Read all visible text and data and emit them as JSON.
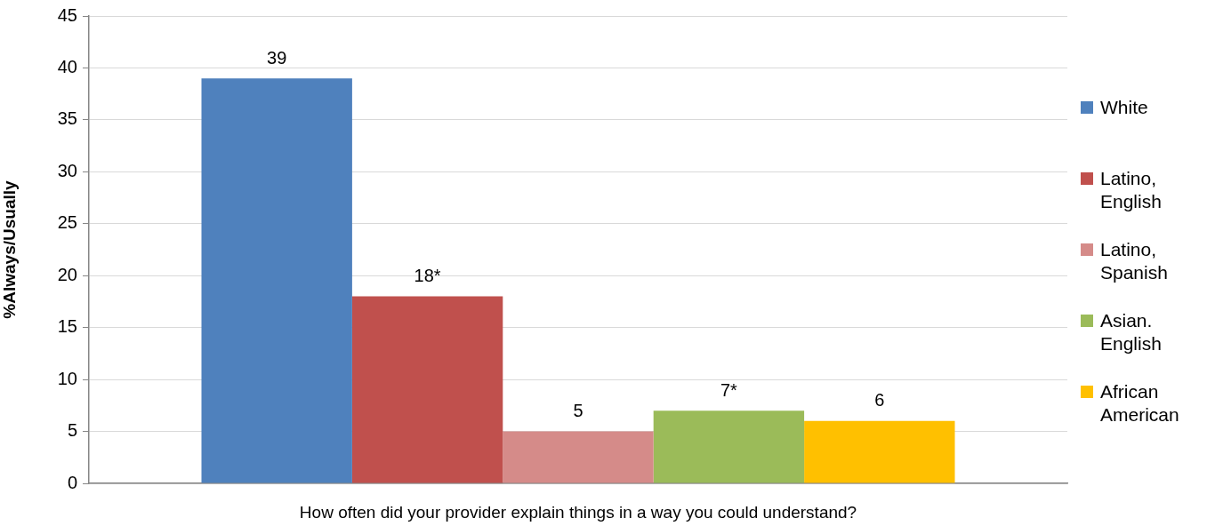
{
  "chart_data": {
    "type": "bar",
    "categories": [
      "How often did your provider explain things in a way you could understand?"
    ],
    "series": [
      {
        "name": "White",
        "color": "#4f81bd",
        "values": [
          39
        ],
        "value_labels": [
          "39"
        ]
      },
      {
        "name": "Latino, English",
        "color": "#c0504d",
        "values": [
          18
        ],
        "value_labels": [
          "18*"
        ]
      },
      {
        "name": "Latino, Spanish",
        "color": "#d58b89",
        "values": [
          5
        ],
        "value_labels": [
          "5"
        ]
      },
      {
        "name": "Asian. English",
        "color": "#9bbb59",
        "values": [
          7
        ],
        "value_labels": [
          "7*"
        ]
      },
      {
        "name": "African American",
        "color": "#ffc000",
        "values": [
          6
        ],
        "value_labels": [
          "6"
        ]
      }
    ],
    "ylabel": "%Always/Usually",
    "ylim": [
      0,
      45
    ],
    "yticks": [
      0,
      5,
      10,
      15,
      20,
      25,
      30,
      35,
      40,
      45
    ],
    "grid": "y",
    "legend": "right"
  }
}
